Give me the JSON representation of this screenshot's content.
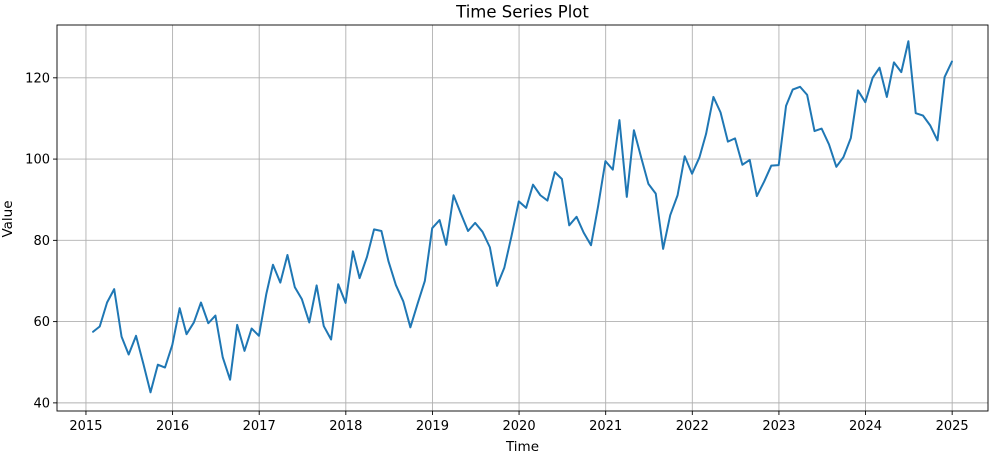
{
  "chart_data": {
    "type": "line",
    "title": "Time Series Plot",
    "xlabel": "Time",
    "ylabel": "Value",
    "grid": true,
    "xlim": [
      "2014-09-01",
      "2025-06-01"
    ],
    "ylim": [
      38,
      133
    ],
    "x_ticks": [
      "2015",
      "2016",
      "2017",
      "2018",
      "2019",
      "2020",
      "2021",
      "2022",
      "2023",
      "2024",
      "2025"
    ],
    "y_ticks": [
      40,
      60,
      80,
      100,
      120
    ],
    "line_color": "#1f77b4",
    "grid_color": "#b0b0b0",
    "series": [
      {
        "dates": [
          "2015-01-31",
          "2015-02-28",
          "2015-03-31",
          "2015-04-30",
          "2015-05-31",
          "2015-06-30",
          "2015-07-31",
          "2015-08-31",
          "2015-09-30",
          "2015-10-31",
          "2015-11-30",
          "2015-12-31",
          "2016-01-31",
          "2016-02-29",
          "2016-03-31",
          "2016-04-30",
          "2016-05-31",
          "2016-06-30",
          "2016-07-31",
          "2016-08-31",
          "2016-09-30",
          "2016-10-31",
          "2016-11-30",
          "2016-12-31",
          "2017-01-31",
          "2017-02-28",
          "2017-03-31",
          "2017-04-30",
          "2017-05-31",
          "2017-06-30",
          "2017-07-31",
          "2017-08-31",
          "2017-09-30",
          "2017-10-31",
          "2017-11-30",
          "2017-12-31",
          "2018-01-31",
          "2018-02-28",
          "2018-03-31",
          "2018-04-30",
          "2018-05-31",
          "2018-06-30",
          "2018-07-31",
          "2018-08-31",
          "2018-09-30",
          "2018-10-31",
          "2018-11-30",
          "2018-12-31",
          "2019-01-31",
          "2019-02-28",
          "2019-03-31",
          "2019-04-30",
          "2019-05-31",
          "2019-06-30",
          "2019-07-31",
          "2019-08-31",
          "2019-09-30",
          "2019-10-31",
          "2019-11-30",
          "2019-12-31",
          "2020-01-31",
          "2020-02-29",
          "2020-03-31",
          "2020-04-30",
          "2020-05-31",
          "2020-06-30",
          "2020-07-31",
          "2020-08-31",
          "2020-09-30",
          "2020-10-31",
          "2020-11-30",
          "2020-12-31",
          "2021-01-31",
          "2021-02-28",
          "2021-03-31",
          "2021-04-30",
          "2021-05-31",
          "2021-06-30",
          "2021-07-31",
          "2021-08-31",
          "2021-09-30",
          "2021-10-31",
          "2021-11-30",
          "2021-12-31",
          "2022-01-31",
          "2022-02-28",
          "2022-03-31",
          "2022-04-30",
          "2022-05-31",
          "2022-06-30",
          "2022-07-31",
          "2022-08-31",
          "2022-09-30",
          "2022-10-31",
          "2022-11-30",
          "2022-12-31",
          "2023-01-31",
          "2023-02-28",
          "2023-03-31",
          "2023-04-30",
          "2023-05-31",
          "2023-06-30",
          "2023-07-31",
          "2023-08-31",
          "2023-09-30",
          "2023-10-31",
          "2023-11-30",
          "2023-12-31",
          "2024-01-31",
          "2024-02-29",
          "2024-03-31",
          "2024-04-30",
          "2024-05-31",
          "2024-06-30",
          "2024-07-31",
          "2024-08-31",
          "2024-09-30",
          "2024-10-31",
          "2024-11-30",
          "2024-12-31"
        ],
        "values": [
          57.5,
          58.8,
          64.7,
          68.0,
          56.3,
          51.9,
          56.5,
          49.6,
          42.6,
          49.4,
          48.7,
          54.3,
          63.3,
          56.9,
          59.8,
          64.7,
          59.6,
          61.5,
          51.2,
          45.7,
          59.2,
          52.8,
          58.3,
          56.5,
          66.8,
          74.0,
          69.6,
          76.4,
          68.5,
          65.5,
          59.8,
          68.9,
          58.9,
          55.6,
          69.2,
          64.6,
          77.3,
          70.7,
          75.9,
          82.7,
          82.3,
          74.8,
          69.0,
          65.0,
          58.6,
          64.5,
          70.0,
          83.0,
          85.0,
          78.9,
          91.1,
          86.7,
          82.3,
          84.3,
          82.1,
          78.3,
          68.8,
          73.3,
          81.0,
          89.6,
          88.0,
          93.7,
          91.1,
          89.8,
          96.8,
          95.1,
          83.7,
          85.8,
          81.9,
          78.8,
          88.4,
          99.5,
          97.4,
          109.6,
          90.7,
          107.1,
          100.3,
          93.9,
          91.5,
          77.9,
          86.2,
          91.1,
          100.7,
          96.4,
          100.4,
          106.2,
          115.3,
          111.5,
          104.3,
          105.1,
          98.6,
          99.8,
          90.9,
          94.5,
          98.4,
          98.5,
          113.1,
          117.1,
          117.8,
          115.8,
          106.9,
          107.5,
          103.6,
          98.1,
          100.5,
          105.2,
          116.9,
          114.0,
          120.0,
          122.5,
          115.3,
          123.8,
          121.4,
          129.0,
          111.3,
          110.7,
          108.3,
          104.6,
          120.2,
          124.0
        ]
      }
    ]
  }
}
